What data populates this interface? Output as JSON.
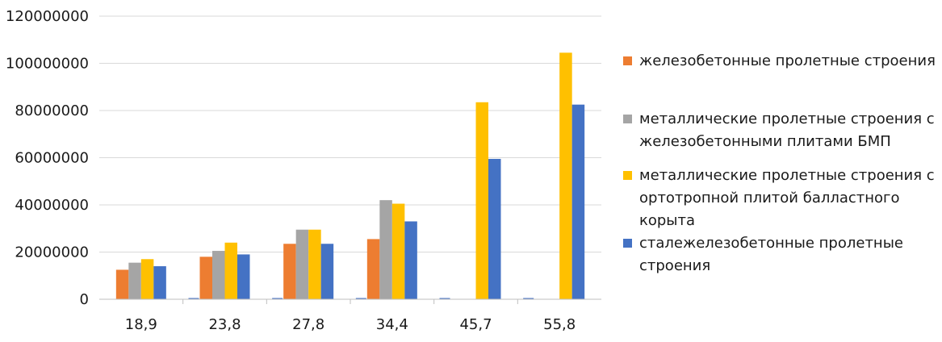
{
  "chart_data": {
    "type": "bar",
    "categories": [
      "18,9",
      "23,8",
      "27,8",
      "34,4",
      "45,7",
      "55,8"
    ],
    "ylim": [
      0,
      120000000
    ],
    "yticks": [
      "0",
      "20000000",
      "40000000",
      "60000000",
      "80000000",
      "100000000",
      "120000000"
    ],
    "ytick_values": [
      0,
      20000000,
      40000000,
      60000000,
      80000000,
      100000000,
      120000000
    ],
    "grid": true,
    "legend_position": "right",
    "series": [
      {
        "name": "железобетонные пролетные строения",
        "color": "#ED7D31",
        "values": [
          12500000,
          18000000,
          23500000,
          25500000,
          0,
          0
        ]
      },
      {
        "name": "металлические пролетные строения с железобетонными плитами БМП",
        "color": "#A5A5A5",
        "values": [
          15500000,
          20500000,
          29500000,
          42000000,
          0,
          0
        ]
      },
      {
        "name": "металлические пролетные строения с ортотропной плитой балластного корыта",
        "color": "#FFC000",
        "values": [
          17000000,
          24000000,
          29500000,
          40500000,
          83500000,
          104500000
        ]
      },
      {
        "name": "сталежелезобетонные пролетные строения",
        "color": "#4472C4",
        "values": [
          14000000,
          19000000,
          23500000,
          33000000,
          59500000,
          82500000
        ]
      }
    ],
    "baseline_series": {
      "color": "#4472C4",
      "values": [
        0,
        0,
        0,
        0,
        0,
        0
      ]
    }
  }
}
